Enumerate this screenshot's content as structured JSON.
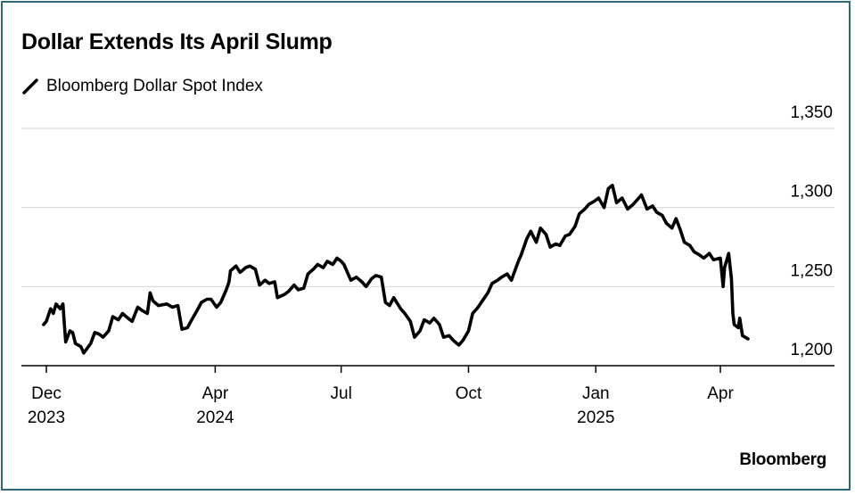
{
  "chart_data": {
    "type": "line",
    "title": "Dollar Extends Its April Slump",
    "source": "Bloomberg",
    "series": [
      {
        "name": "Bloomberg Dollar Spot Index",
        "color": "#000000",
        "points": [
          [
            "2023-11-29",
            1226
          ],
          [
            "2023-12-01",
            1228
          ],
          [
            "2023-12-04",
            1236
          ],
          [
            "2023-12-06",
            1233
          ],
          [
            "2023-12-08",
            1239
          ],
          [
            "2023-12-11",
            1236
          ],
          [
            "2023-12-13",
            1239
          ],
          [
            "2023-12-14",
            1226
          ],
          [
            "2023-12-15",
            1215
          ],
          [
            "2023-12-18",
            1222
          ],
          [
            "2023-12-20",
            1221
          ],
          [
            "2023-12-22",
            1214
          ],
          [
            "2023-12-26",
            1212
          ],
          [
            "2023-12-28",
            1208
          ],
          [
            "2024-01-02",
            1214
          ],
          [
            "2024-01-05",
            1221
          ],
          [
            "2024-01-08",
            1220
          ],
          [
            "2024-01-11",
            1218
          ],
          [
            "2024-01-15",
            1222
          ],
          [
            "2024-01-18",
            1231
          ],
          [
            "2024-01-22",
            1229
          ],
          [
            "2024-01-25",
            1233
          ],
          [
            "2024-01-29",
            1230
          ],
          [
            "2024-02-01",
            1228
          ],
          [
            "2024-02-05",
            1237
          ],
          [
            "2024-02-08",
            1235
          ],
          [
            "2024-02-12",
            1233
          ],
          [
            "2024-02-14",
            1246
          ],
          [
            "2024-02-16",
            1241
          ],
          [
            "2024-02-20",
            1238
          ],
          [
            "2024-02-26",
            1239
          ],
          [
            "2024-03-01",
            1237
          ],
          [
            "2024-03-05",
            1238
          ],
          [
            "2024-03-08",
            1223
          ],
          [
            "2024-03-12",
            1224
          ],
          [
            "2024-03-15",
            1229
          ],
          [
            "2024-03-19",
            1235
          ],
          [
            "2024-03-22",
            1240
          ],
          [
            "2024-03-26",
            1242
          ],
          [
            "2024-03-29",
            1242
          ],
          [
            "2024-04-02",
            1237
          ],
          [
            "2024-04-05",
            1240
          ],
          [
            "2024-04-09",
            1248
          ],
          [
            "2024-04-11",
            1253
          ],
          [
            "2024-04-12",
            1260
          ],
          [
            "2024-04-16",
            1263
          ],
          [
            "2024-04-19",
            1259
          ],
          [
            "2024-04-23",
            1262
          ],
          [
            "2024-04-26",
            1263
          ],
          [
            "2024-04-30",
            1261
          ],
          [
            "2024-05-03",
            1251
          ],
          [
            "2024-05-07",
            1254
          ],
          [
            "2024-05-10",
            1252
          ],
          [
            "2024-05-14",
            1253
          ],
          [
            "2024-05-16",
            1243
          ],
          [
            "2024-05-21",
            1245
          ],
          [
            "2024-05-24",
            1247
          ],
          [
            "2024-05-28",
            1251
          ],
          [
            "2024-05-31",
            1248
          ],
          [
            "2024-06-04",
            1249
          ],
          [
            "2024-06-07",
            1258
          ],
          [
            "2024-06-11",
            1261
          ],
          [
            "2024-06-14",
            1264
          ],
          [
            "2024-06-18",
            1262
          ],
          [
            "2024-06-21",
            1266
          ],
          [
            "2024-06-25",
            1264
          ],
          [
            "2024-06-28",
            1268
          ],
          [
            "2024-07-01",
            1266
          ],
          [
            "2024-07-03",
            1264
          ],
          [
            "2024-07-08",
            1254
          ],
          [
            "2024-07-12",
            1256
          ],
          [
            "2024-07-16",
            1253
          ],
          [
            "2024-07-19",
            1250
          ],
          [
            "2024-07-23",
            1255
          ],
          [
            "2024-07-26",
            1257
          ],
          [
            "2024-07-30",
            1256
          ],
          [
            "2024-08-02",
            1240
          ],
          [
            "2024-08-05",
            1238
          ],
          [
            "2024-08-08",
            1243
          ],
          [
            "2024-08-13",
            1236
          ],
          [
            "2024-08-16",
            1233
          ],
          [
            "2024-08-20",
            1228
          ],
          [
            "2024-08-23",
            1218
          ],
          [
            "2024-08-27",
            1222
          ],
          [
            "2024-08-30",
            1229
          ],
          [
            "2024-09-03",
            1227
          ],
          [
            "2024-09-06",
            1230
          ],
          [
            "2024-09-10",
            1226
          ],
          [
            "2024-09-13",
            1218
          ],
          [
            "2024-09-17",
            1219
          ],
          [
            "2024-09-20",
            1216
          ],
          [
            "2024-09-24",
            1213
          ],
          [
            "2024-09-27",
            1216
          ],
          [
            "2024-10-01",
            1222
          ],
          [
            "2024-10-04",
            1233
          ],
          [
            "2024-10-08",
            1237
          ],
          [
            "2024-10-11",
            1241
          ],
          [
            "2024-10-15",
            1246
          ],
          [
            "2024-10-18",
            1252
          ],
          [
            "2024-10-22",
            1254
          ],
          [
            "2024-10-25",
            1256
          ],
          [
            "2024-10-29",
            1258
          ],
          [
            "2024-11-01",
            1254
          ],
          [
            "2024-11-06",
            1266
          ],
          [
            "2024-11-08",
            1270
          ],
          [
            "2024-11-12",
            1280
          ],
          [
            "2024-11-15",
            1285
          ],
          [
            "2024-11-19",
            1278
          ],
          [
            "2024-11-22",
            1287
          ],
          [
            "2024-11-26",
            1283
          ],
          [
            "2024-11-29",
            1275
          ],
          [
            "2024-12-03",
            1277
          ],
          [
            "2024-12-06",
            1276
          ],
          [
            "2024-12-10",
            1282
          ],
          [
            "2024-12-13",
            1283
          ],
          [
            "2024-12-17",
            1288
          ],
          [
            "2024-12-20",
            1296
          ],
          [
            "2024-12-24",
            1299
          ],
          [
            "2024-12-27",
            1302
          ],
          [
            "2024-12-31",
            1304
          ],
          [
            "2025-01-03",
            1306
          ],
          [
            "2025-01-07",
            1300
          ],
          [
            "2025-01-10",
            1312
          ],
          [
            "2025-01-13",
            1314
          ],
          [
            "2025-01-16",
            1303
          ],
          [
            "2025-01-20",
            1306
          ],
          [
            "2025-01-24",
            1299
          ],
          [
            "2025-01-28",
            1302
          ],
          [
            "2025-01-31",
            1305
          ],
          [
            "2025-02-03",
            1308
          ],
          [
            "2025-02-07",
            1299
          ],
          [
            "2025-02-11",
            1301
          ],
          [
            "2025-02-14",
            1297
          ],
          [
            "2025-02-18",
            1295
          ],
          [
            "2025-02-21",
            1290
          ],
          [
            "2025-02-25",
            1287
          ],
          [
            "2025-02-28",
            1293
          ],
          [
            "2025-03-03",
            1286
          ],
          [
            "2025-03-06",
            1278
          ],
          [
            "2025-03-10",
            1276
          ],
          [
            "2025-03-13",
            1272
          ],
          [
            "2025-03-17",
            1270
          ],
          [
            "2025-03-20",
            1268
          ],
          [
            "2025-03-24",
            1271
          ],
          [
            "2025-03-27",
            1267
          ],
          [
            "2025-04-01",
            1268
          ],
          [
            "2025-04-03",
            1250
          ],
          [
            "2025-04-04",
            1262
          ],
          [
            "2025-04-07",
            1271
          ],
          [
            "2025-04-09",
            1255
          ],
          [
            "2025-04-10",
            1233
          ],
          [
            "2025-04-11",
            1226
          ],
          [
            "2025-04-14",
            1224
          ],
          [
            "2025-04-15",
            1230
          ],
          [
            "2025-04-17",
            1219
          ],
          [
            "2025-04-21",
            1217
          ]
        ]
      }
    ],
    "xaxis": {
      "min": "2023-11-15",
      "max": "2025-05-10",
      "ticks": [
        {
          "date": "2023-12-01",
          "label": "Dec",
          "sublabel": "2023"
        },
        {
          "date": "2024-04-01",
          "label": "Apr",
          "sublabel": "2024"
        },
        {
          "date": "2024-07-01",
          "label": "Jul",
          "sublabel": ""
        },
        {
          "date": "2024-10-01",
          "label": "Oct",
          "sublabel": ""
        },
        {
          "date": "2025-01-01",
          "label": "Jan",
          "sublabel": "2025"
        },
        {
          "date": "2025-04-01",
          "label": "Apr",
          "sublabel": ""
        }
      ]
    },
    "yaxis": {
      "min": 1200,
      "max": 1350,
      "position": "right",
      "ticks": [
        {
          "value": 1350,
          "label": "1,350"
        },
        {
          "value": 1300,
          "label": "1,300"
        },
        {
          "value": 1250,
          "label": "1,250"
        },
        {
          "value": 1200,
          "label": "1,200"
        }
      ]
    },
    "grid": "horizontal",
    "legend": "top-left"
  }
}
